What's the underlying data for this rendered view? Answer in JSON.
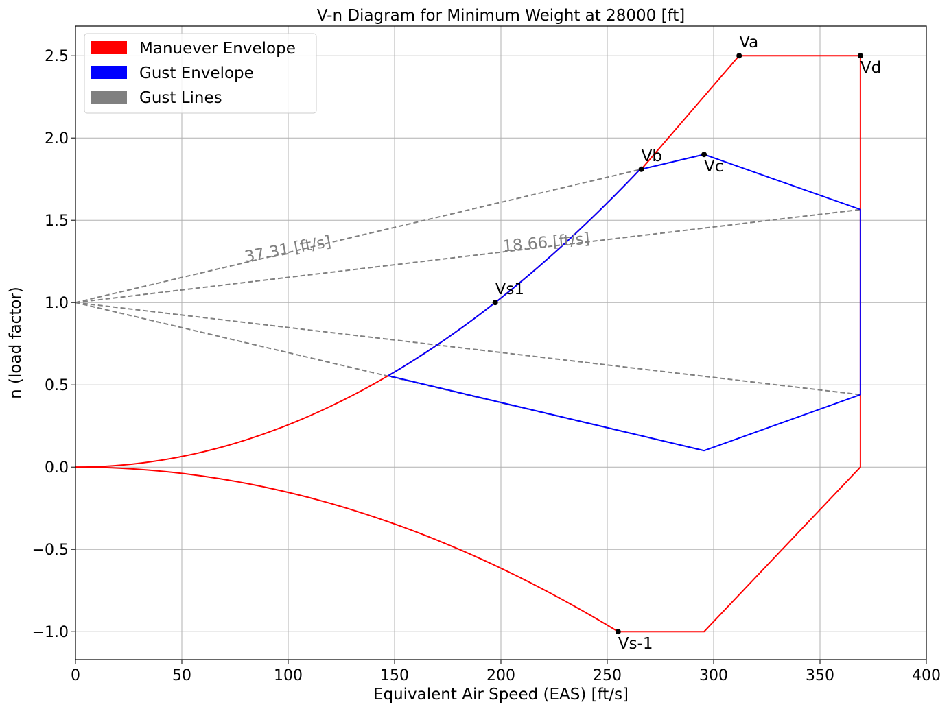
{
  "chart_data": {
    "type": "line",
    "title": "V-n Diagram for Minimum Weight at 28000 [ft]",
    "xlabel": "Equivalent Air Speed (EAS) [ft/s]",
    "ylabel": "n (load factor)",
    "xlim": [
      0,
      400
    ],
    "ylim": [
      -1.17,
      2.68
    ],
    "xticks": [
      0,
      50,
      100,
      150,
      200,
      250,
      300,
      350,
      400
    ],
    "xtick_labels": [
      "0",
      "50",
      "100",
      "150",
      "200",
      "250",
      "300",
      "350",
      "400"
    ],
    "yticks": [
      -1.0,
      -0.5,
      0.0,
      0.5,
      1.0,
      1.5,
      2.0,
      2.5
    ],
    "ytick_labels": [
      "−1.0",
      "−0.5",
      "0.0",
      "0.5",
      "1.0",
      "1.5",
      "2.0",
      "2.5"
    ],
    "grid": true,
    "legend": {
      "placement": "top-left",
      "entries": [
        {
          "label": "Manuever Envelope",
          "color": "#ff0000"
        },
        {
          "label": "Gust Envelope",
          "color": "#0000ff"
        },
        {
          "label": "Gust Lines",
          "color": "#808080"
        }
      ]
    },
    "vs1": 197.3,
    "vsneg": 255.1,
    "maneuver_envelope": {
      "color": "#ff0000",
      "positive_points": [
        [
          266.0,
          1.81
        ],
        [
          312.0,
          2.5
        ],
        [
          369.0,
          2.5
        ],
        [
          369.0,
          0.0
        ],
        [
          295.5,
          -1.0
        ],
        [
          255.1,
          -1.0
        ]
      ]
    },
    "gust_envelope": {
      "color": "#0000ff",
      "points": [
        [
          147.0,
          0.555
        ],
        [
          197.3,
          1.0
        ],
        [
          266.0,
          1.81
        ],
        [
          295.5,
          1.9
        ],
        [
          369.0,
          1.565
        ],
        [
          369.0,
          0.44
        ],
        [
          295.5,
          0.1
        ],
        [
          147.0,
          0.555
        ]
      ]
    },
    "gust_lines": {
      "color": "#808080",
      "segments": [
        [
          [
            0,
            1.0
          ],
          [
            266.0,
            1.81
          ]
        ],
        [
          [
            266.0,
            1.81
          ],
          [
            295.5,
            1.9
          ]
        ],
        [
          [
            0,
            1.0
          ],
          [
            369.0,
            1.565
          ]
        ],
        [
          [
            0,
            1.0
          ],
          [
            295.5,
            0.1
          ]
        ],
        [
          [
            0,
            1.0
          ],
          [
            369.0,
            0.44
          ]
        ]
      ],
      "labels": [
        {
          "text": "37.31 [ft/s]",
          "x": 80,
          "y": 1.245,
          "angle": -10.5
        },
        {
          "text": "18.66 [ft/s]",
          "x": 201,
          "y": 1.31,
          "angle": -5.2
        }
      ]
    },
    "points": [
      {
        "label": "Va",
        "x": 312.0,
        "y": 2.5,
        "label_pos": "above"
      },
      {
        "label": "Vd",
        "x": 369.0,
        "y": 2.5,
        "label_pos": "below"
      },
      {
        "label": "Vb",
        "x": 266.0,
        "y": 1.81,
        "label_pos": "above"
      },
      {
        "label": "Vc",
        "x": 295.5,
        "y": 1.9,
        "label_pos": "below"
      },
      {
        "label": "Vs1",
        "x": 197.3,
        "y": 1.0,
        "label_pos": "above"
      },
      {
        "label": "Vs-1",
        "x": 255.1,
        "y": -1.0,
        "label_pos": "below"
      }
    ]
  }
}
